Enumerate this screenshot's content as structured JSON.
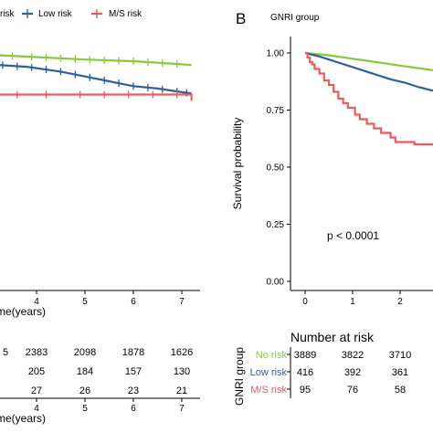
{
  "chart_data": [
    {
      "type": "line",
      "panel_label": "",
      "legend": {
        "placement": "top",
        "title": "",
        "entries": [
          "risk",
          "Low risk",
          "M/S risk"
        ]
      },
      "xlabel": "me(years)",
      "ylabel": "",
      "x_ticks": [
        "4",
        "5",
        "6",
        "7"
      ],
      "xlim": [
        2.0,
        7.2
      ],
      "ylim": [
        0,
        1.05
      ],
      "p_value": "",
      "series": [
        {
          "name": "No risk",
          "color": "#8CC63F",
          "points": [
            [
              2.0,
              0.985
            ],
            [
              3.0,
              0.975
            ],
            [
              4.0,
              0.965
            ],
            [
              5.0,
              0.955
            ],
            [
              6.0,
              0.948
            ],
            [
              7.0,
              0.935
            ],
            [
              7.2,
              0.932
            ]
          ],
          "censor_x": [
            2.6,
            3.2,
            3.5,
            3.9,
            4.2,
            4.5,
            4.8,
            5.1,
            5.4,
            5.7,
            6.0,
            6.3,
            6.6,
            6.9
          ]
        },
        {
          "name": "Low risk",
          "color": "#2F5F9E",
          "points": [
            [
              2.0,
              0.955
            ],
            [
              3.0,
              0.935
            ],
            [
              3.8,
              0.925
            ],
            [
              4.5,
              0.905
            ],
            [
              5.0,
              0.885
            ],
            [
              5.5,
              0.865
            ],
            [
              6.0,
              0.845
            ],
            [
              6.5,
              0.835
            ],
            [
              7.0,
              0.82
            ],
            [
              7.2,
              0.815
            ]
          ],
          "censor_x": [
            2.3,
            2.7,
            3.0,
            3.3,
            3.6,
            3.9,
            4.2,
            4.5,
            4.8,
            5.1,
            5.4,
            5.7,
            6.0,
            6.3,
            6.6,
            6.9,
            7.1
          ]
        },
        {
          "name": "M/S risk",
          "color": "#E85C5C",
          "step": true,
          "points": [
            [
              2.0,
              0.82
            ],
            [
              2.7,
              0.82
            ],
            [
              2.7,
              0.81
            ],
            [
              7.2,
              0.81
            ],
            [
              7.2,
              0.785
            ]
          ],
          "censor_x": [
            3.1,
            3.6,
            4.2,
            4.9,
            5.4,
            5.9,
            6.4,
            6.9
          ]
        }
      ],
      "risk_table": {
        "title": "",
        "x_ticks": [
          "4",
          "5",
          "6",
          "7"
        ],
        "xlabel": "me(years)",
        "rows": [
          {
            "label": "",
            "color": "#8CC63F",
            "values": [
              "5",
              "2383",
              "2098",
              "1878",
              "1626"
            ]
          },
          {
            "label": "",
            "color": "#2F5F9E",
            "values": [
              "",
              "205",
              "184",
              "157",
              "130"
            ]
          },
          {
            "label": "",
            "color": "#E85C5C",
            "values": [
              "",
              "27",
              "26",
              "23",
              "21"
            ]
          }
        ],
        "value_x": [
          3.0,
          4.0,
          5.0,
          6.0,
          7.0
        ]
      }
    },
    {
      "type": "line",
      "panel_label": "B",
      "legend": {
        "placement": "top-right",
        "title": "GNRI group",
        "entries": []
      },
      "xlabel": "",
      "ylabel": "Survival probability",
      "x_ticks": [
        "0",
        "1",
        "2"
      ],
      "y_ticks": [
        "0.00",
        "0.25",
        "0.50",
        "0.75",
        "1.00"
      ],
      "xlim": [
        -0.35,
        2.7
      ],
      "ylim": [
        -0.05,
        1.05
      ],
      "p_value": "p < 0.0001",
      "series": [
        {
          "name": "No risk",
          "color": "#8CC63F",
          "points": [
            [
              0,
              1.0
            ],
            [
              0.5,
              0.99
            ],
            [
              1.0,
              0.975
            ],
            [
              1.5,
              0.96
            ],
            [
              2.0,
              0.945
            ],
            [
              2.5,
              0.93
            ],
            [
              2.7,
              0.925
            ]
          ]
        },
        {
          "name": "Low risk",
          "color": "#2F5F9E",
          "points": [
            [
              0,
              1.0
            ],
            [
              0.3,
              0.985
            ],
            [
              0.6,
              0.965
            ],
            [
              0.9,
              0.945
            ],
            [
              1.2,
              0.925
            ],
            [
              1.5,
              0.905
            ],
            [
              1.8,
              0.885
            ],
            [
              2.1,
              0.87
            ],
            [
              2.4,
              0.85
            ],
            [
              2.7,
              0.835
            ]
          ]
        },
        {
          "name": "M/S risk",
          "color": "#E85C5C",
          "step": true,
          "points": [
            [
              0,
              1.0
            ],
            [
              0.05,
              1.0
            ],
            [
              0.05,
              0.98
            ],
            [
              0.1,
              0.98
            ],
            [
              0.1,
              0.96
            ],
            [
              0.15,
              0.96
            ],
            [
              0.15,
              0.95
            ],
            [
              0.2,
              0.95
            ],
            [
              0.2,
              0.93
            ],
            [
              0.3,
              0.93
            ],
            [
              0.3,
              0.91
            ],
            [
              0.4,
              0.91
            ],
            [
              0.4,
              0.88
            ],
            [
              0.5,
              0.88
            ],
            [
              0.5,
              0.86
            ],
            [
              0.6,
              0.86
            ],
            [
              0.6,
              0.83
            ],
            [
              0.7,
              0.83
            ],
            [
              0.7,
              0.8
            ],
            [
              0.8,
              0.8
            ],
            [
              0.8,
              0.78
            ],
            [
              0.9,
              0.78
            ],
            [
              0.9,
              0.76
            ],
            [
              1.05,
              0.76
            ],
            [
              1.05,
              0.73
            ],
            [
              1.15,
              0.73
            ],
            [
              1.15,
              0.71
            ],
            [
              1.3,
              0.71
            ],
            [
              1.3,
              0.69
            ],
            [
              1.45,
              0.69
            ],
            [
              1.45,
              0.67
            ],
            [
              1.6,
              0.67
            ],
            [
              1.6,
              0.65
            ],
            [
              1.8,
              0.65
            ],
            [
              1.8,
              0.63
            ],
            [
              1.9,
              0.63
            ],
            [
              1.9,
              0.61
            ],
            [
              2.3,
              0.61
            ],
            [
              2.3,
              0.6
            ],
            [
              2.7,
              0.6
            ]
          ]
        }
      ],
      "risk_table": {
        "title": "Number at risk",
        "ylabel": "GNRI group",
        "x_ticks": [],
        "xlabel": "",
        "rows": [
          {
            "label": "No risk",
            "color": "#8CC63F",
            "values": [
              "3889",
              "3822",
              "3710"
            ]
          },
          {
            "label": "Low risk",
            "color": "#2F5F9E",
            "values": [
              "416",
              "392",
              "361"
            ]
          },
          {
            "label": "M/S risk",
            "color": "#E85C5C",
            "values": [
              "95",
              "76",
              "58"
            ]
          }
        ],
        "value_x": [
          0,
          1,
          2
        ]
      }
    }
  ]
}
